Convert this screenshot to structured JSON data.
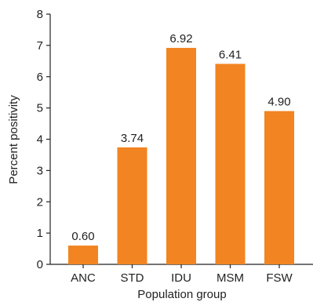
{
  "chart_data": {
    "type": "bar",
    "title": "",
    "xlabel": "Population group",
    "ylabel": "Percent positivity",
    "categories": [
      "ANC",
      "STD",
      "IDU",
      "MSM",
      "FSW"
    ],
    "values": [
      0.6,
      3.74,
      6.92,
      6.41,
      4.9
    ],
    "value_labels": [
      "0.60",
      "3.74",
      "6.92",
      "6.41",
      "4.90"
    ],
    "yticks": [
      "0",
      "1",
      "2",
      "3",
      "4",
      "5",
      "6",
      "7",
      "8"
    ],
    "ylim": [
      0,
      8
    ],
    "bar_color": "#f28421",
    "grid": false,
    "legend": "none"
  }
}
